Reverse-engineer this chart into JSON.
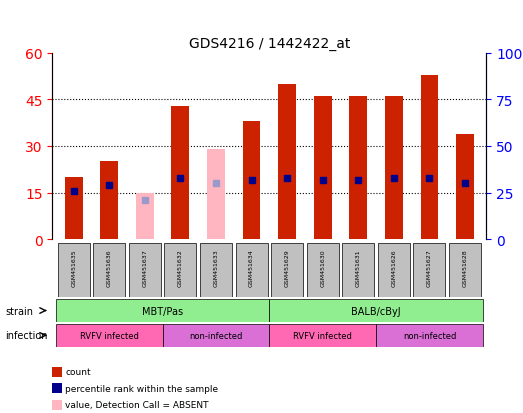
{
  "title": "GDS4216 / 1442422_at",
  "samples": [
    "GSM451635",
    "GSM451636",
    "GSM451637",
    "GSM451632",
    "GSM451633",
    "GSM451634",
    "GSM451629",
    "GSM451630",
    "GSM451631",
    "GSM451626",
    "GSM451627",
    "GSM451628"
  ],
  "count_values": [
    20,
    25,
    null,
    43,
    null,
    38,
    50,
    46,
    46,
    46,
    53,
    34
  ],
  "count_absent": [
    null,
    null,
    15,
    null,
    29,
    null,
    null,
    null,
    null,
    null,
    null,
    null
  ],
  "rank_values": [
    26,
    29,
    null,
    33,
    null,
    32,
    33,
    32,
    32,
    33,
    33,
    30
  ],
  "rank_absent": [
    null,
    null,
    21,
    null,
    30,
    null,
    null,
    null,
    null,
    null,
    null,
    null
  ],
  "left_ylim": [
    0,
    60
  ],
  "right_ylim": [
    0,
    100
  ],
  "left_yticks": [
    0,
    15,
    30,
    45,
    60
  ],
  "right_yticks": [
    0,
    25,
    50,
    75,
    100
  ],
  "strain_groups": [
    {
      "label": "MBT/Pas",
      "start": 0,
      "end": 6,
      "color": "#90EE90"
    },
    {
      "label": "BALB/cByJ",
      "start": 6,
      "end": 12,
      "color": "#90EE90"
    }
  ],
  "infection_groups": [
    {
      "label": "RVFV infected",
      "start": 0,
      "end": 3,
      "color": "#FF69B4"
    },
    {
      "label": "non-infected",
      "start": 3,
      "end": 6,
      "color": "#DA70D6"
    },
    {
      "label": "RVFV infected",
      "start": 6,
      "end": 9,
      "color": "#FF69B4"
    },
    {
      "label": "non-infected",
      "start": 9,
      "end": 12,
      "color": "#DA70D6"
    }
  ],
  "bar_width": 0.5,
  "count_color": "#CC2200",
  "count_absent_color": "#FFB6C1",
  "rank_color": "#00008B",
  "rank_absent_color": "#9999CC",
  "bg_color": "#FFFFFF",
  "grid_color": "#000000",
  "sample_box_color": "#C0C0C0"
}
